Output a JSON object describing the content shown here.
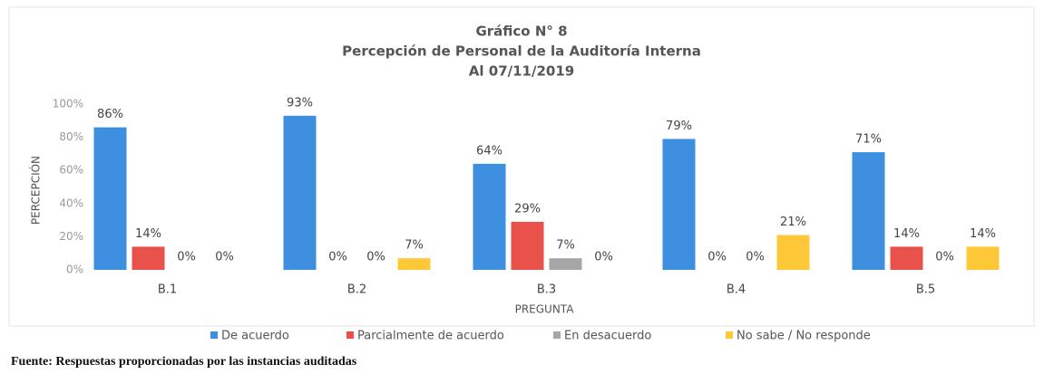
{
  "chart_data": {
    "type": "bar",
    "title": [
      "Gráfico N° 8",
      "Percepción de Personal de la Auditoría Interna",
      "Al 07/11/2019"
    ],
    "y_label": "PERCEPCIÓN",
    "x_label": "PREGUNTA",
    "categories": [
      "B.1",
      "B.2",
      "B.3",
      "B.4",
      "B.5"
    ],
    "series": [
      {
        "name": "De acuerdo",
        "color": "#3e8fe0",
        "values": [
          86,
          93,
          64,
          79,
          71
        ],
        "value_labels": [
          "86%",
          "93%",
          "64%",
          "79%",
          "71%"
        ]
      },
      {
        "name": "Parcialmente de acuerdo",
        "color": "#e8524a",
        "values": [
          14,
          0,
          29,
          0,
          14
        ],
        "value_labels": [
          "14%",
          "0%",
          "29%",
          "0%",
          "14%"
        ]
      },
      {
        "name": "En desacuerdo",
        "color": "#a6a6a6",
        "values": [
          0,
          0,
          7,
          0,
          0
        ],
        "value_labels": [
          "0%",
          "0%",
          "7%",
          "0%",
          "0%"
        ]
      },
      {
        "name": "No sabe / No responde",
        "color": "#ffc838",
        "values": [
          0,
          7,
          0,
          21,
          14
        ],
        "value_labels": [
          "0%",
          "7%",
          "0%",
          "21%",
          "14%"
        ]
      }
    ],
    "ylim": [
      0,
      100
    ],
    "yticks": [
      {
        "value": 0,
        "label": "0%"
      },
      {
        "value": 20,
        "label": "20%"
      },
      {
        "value": 40,
        "label": "40%"
      },
      {
        "value": 60,
        "label": "60%"
      },
      {
        "value": 80,
        "label": "80%"
      },
      {
        "value": 100,
        "label": "100%"
      }
    ],
    "legend": "bottom",
    "source": "Fuente: Respuestas proporcionadas por las instancias auditadas"
  }
}
